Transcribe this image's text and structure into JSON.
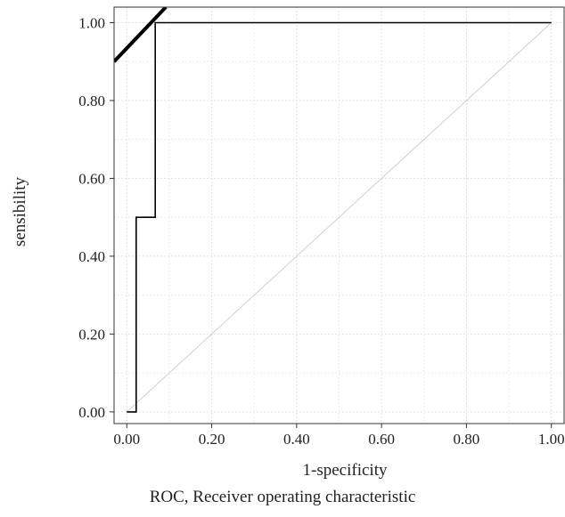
{
  "chart_data": {
    "type": "line",
    "caption": "ROC, Receiver operating characteristic",
    "xlabel": "1-specificity",
    "ylabel": "sensibility",
    "xlim": [
      -0.03,
      1.03
    ],
    "ylim": [
      -0.03,
      1.04
    ],
    "x_ticks": [
      0,
      0.2,
      0.4,
      0.6,
      0.8,
      1.0
    ],
    "y_ticks": [
      0,
      0.2,
      0.4,
      0.6,
      0.8,
      1.0
    ],
    "x_tick_labels": [
      "0.00",
      "0.20",
      "0.40",
      "0.60",
      "0.80",
      "1.00"
    ],
    "y_tick_labels": [
      "0.00",
      "0.20",
      "0.40",
      "0.60",
      "0.80",
      "1.00"
    ],
    "grid": true,
    "series": [
      {
        "role": "roc-curve",
        "color": "#000000",
        "x": [
          0,
          0.022,
          0.022,
          0.067,
          0.067,
          1.0
        ],
        "y": [
          0,
          0,
          0.5,
          0.5,
          1.0,
          1.0
        ]
      },
      {
        "role": "diagonal-reference",
        "color": "#d0d0d0",
        "x": [
          0,
          1
        ],
        "y": [
          0,
          1
        ]
      },
      {
        "role": "thick-line",
        "color": "#000000",
        "x": [
          -0.03,
          0.092
        ],
        "y": [
          0.9,
          1.04
        ]
      }
    ]
  }
}
